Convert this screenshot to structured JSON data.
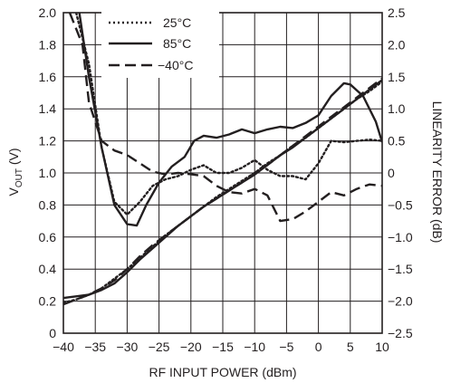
{
  "chart_data": {
    "type": "line",
    "title": "",
    "xlabel": "RF INPUT POWER (dBm)",
    "ylabel_left": {
      "main": "V",
      "sub": "OUT",
      "unit": " (V)"
    },
    "ylabel_right": "LINEARITY ERROR (dB)",
    "xlim": [
      -40,
      10
    ],
    "ylim_left": [
      0,
      2.0
    ],
    "ylim_right": [
      -2.5,
      2.5
    ],
    "grid": true,
    "legend_position": "top-left",
    "x_ticks": [
      -40,
      -35,
      -30,
      -25,
      -20,
      -15,
      -10,
      -5,
      0,
      5,
      10
    ],
    "x_tick_labels": [
      "−40",
      "−35",
      "−30",
      "−25",
      "−20",
      "−15",
      "−10",
      "−5",
      "0",
      "5",
      "10"
    ],
    "y_left_ticks": [
      0,
      0.2,
      0.4,
      0.6,
      0.8,
      1.0,
      1.2,
      1.4,
      1.6,
      1.8,
      2.0
    ],
    "y_left_tick_labels": [
      "0",
      "0.2",
      "0.4",
      "0.6",
      "0.8",
      "1.0",
      "1.2",
      "1.4",
      "1.6",
      "1.8",
      "2.0"
    ],
    "y_right_ticks": [
      -2.5,
      -2.0,
      -1.5,
      -1.0,
      -0.5,
      0,
      0.5,
      1.0,
      1.5,
      2.0,
      2.5
    ],
    "y_right_tick_labels": [
      "−2.5",
      "−2.0",
      "−1.5",
      "−1.0",
      "−0.5",
      "0",
      "0.5",
      "1.0",
      "1.5",
      "2.0",
      "2.5"
    ],
    "series": [
      {
        "name": "25°C",
        "style": "dotted",
        "axis": "left",
        "x": [
          -40,
          -38,
          -36,
          -34,
          -32,
          -30,
          -28,
          -26,
          -24,
          -22,
          -20,
          -18,
          -16,
          -14,
          -12,
          -10,
          -8,
          -6,
          -4,
          -2,
          0,
          2,
          4,
          6,
          8,
          10
        ],
        "values": [
          0.19,
          0.21,
          0.24,
          0.28,
          0.34,
          0.4,
          0.47,
          0.54,
          0.61,
          0.67,
          0.73,
          0.79,
          0.85,
          0.9,
          0.95,
          1.0,
          1.06,
          1.11,
          1.17,
          1.22,
          1.28,
          1.34,
          1.4,
          1.46,
          1.51,
          1.57
        ]
      },
      {
        "name": "85°C",
        "style": "solid",
        "axis": "left",
        "x": [
          -40,
          -38,
          -36,
          -34,
          -32,
          -30,
          -28,
          -26,
          -24,
          -22,
          -20,
          -18,
          -16,
          -14,
          -12,
          -10,
          -8,
          -6,
          -4,
          -2,
          0,
          2,
          4,
          6,
          8,
          10
        ],
        "values": [
          0.22,
          0.23,
          0.24,
          0.27,
          0.31,
          0.38,
          0.46,
          0.53,
          0.6,
          0.67,
          0.73,
          0.79,
          0.84,
          0.89,
          0.94,
          0.99,
          1.05,
          1.11,
          1.16,
          1.22,
          1.28,
          1.34,
          1.4,
          1.46,
          1.52,
          1.58
        ]
      },
      {
        "name": "−40°C",
        "style": "dashed",
        "axis": "left",
        "x": [
          -40,
          -38,
          -36,
          -34,
          -32,
          -30,
          -28,
          -26,
          -24,
          -22,
          -20,
          -18,
          -16,
          -14,
          -12,
          -10,
          -8,
          -6,
          -4,
          -2,
          0,
          2,
          4,
          6,
          8,
          10
        ],
        "values": [
          0.18,
          0.21,
          0.24,
          0.28,
          0.33,
          0.4,
          0.48,
          0.55,
          0.61,
          0.67,
          0.73,
          0.79,
          0.84,
          0.89,
          0.94,
          1.0,
          1.05,
          1.11,
          1.17,
          1.23,
          1.29,
          1.35,
          1.41,
          1.47,
          1.53,
          1.59
        ]
      },
      {
        "name": "25°C",
        "style": "dotted",
        "axis": "right",
        "x": [
          -38,
          -36,
          -34,
          -32,
          -30,
          -28,
          -26,
          -24,
          -22,
          -20,
          -18,
          -16,
          -14,
          -12,
          -10,
          -8,
          -6,
          -4,
          -2,
          0,
          2,
          4,
          6,
          8,
          10
        ],
        "values": [
          2.5,
          1.7,
          0.4,
          -0.45,
          -0.65,
          -0.45,
          -0.2,
          -0.1,
          -0.05,
          0.05,
          0.12,
          0.0,
          0.0,
          0.08,
          0.2,
          0.05,
          -0.05,
          -0.05,
          -0.1,
          0.15,
          0.5,
          0.48,
          0.5,
          0.52,
          0.5
        ]
      },
      {
        "name": "85°C",
        "style": "solid",
        "axis": "right",
        "x": [
          -37.5,
          -36,
          -34,
          -32,
          -30,
          -28.5,
          -27,
          -25,
          -23,
          -21,
          -19.5,
          -18,
          -16,
          -14,
          -12,
          -10,
          -8,
          -6,
          -4,
          -2,
          0,
          2,
          4,
          5,
          7,
          9,
          10
        ],
        "values": [
          2.5,
          1.5,
          0.4,
          -0.5,
          -0.8,
          -0.82,
          -0.5,
          -0.15,
          0.1,
          0.25,
          0.5,
          0.58,
          0.55,
          0.6,
          0.68,
          0.62,
          0.68,
          0.72,
          0.7,
          0.78,
          0.9,
          1.2,
          1.4,
          1.38,
          1.2,
          0.8,
          0.48
        ]
      },
      {
        "name": "−40°C",
        "style": "dashed",
        "axis": "right",
        "x": [
          -39,
          -37,
          -36,
          -34,
          -32,
          -30,
          -28,
          -26,
          -24,
          -22,
          -20,
          -18,
          -16,
          -14,
          -12,
          -10,
          -8,
          -6,
          -4,
          -2,
          0,
          2,
          4,
          6,
          8,
          10
        ],
        "values": [
          2.5,
          2.0,
          1.1,
          0.5,
          0.35,
          0.28,
          0.15,
          0.02,
          -0.02,
          0.0,
          -0.02,
          -0.05,
          -0.2,
          -0.3,
          -0.32,
          -0.25,
          -0.35,
          -0.75,
          -0.72,
          -0.6,
          -0.45,
          -0.3,
          -0.35,
          -0.25,
          -0.18,
          -0.2
        ]
      }
    ]
  }
}
